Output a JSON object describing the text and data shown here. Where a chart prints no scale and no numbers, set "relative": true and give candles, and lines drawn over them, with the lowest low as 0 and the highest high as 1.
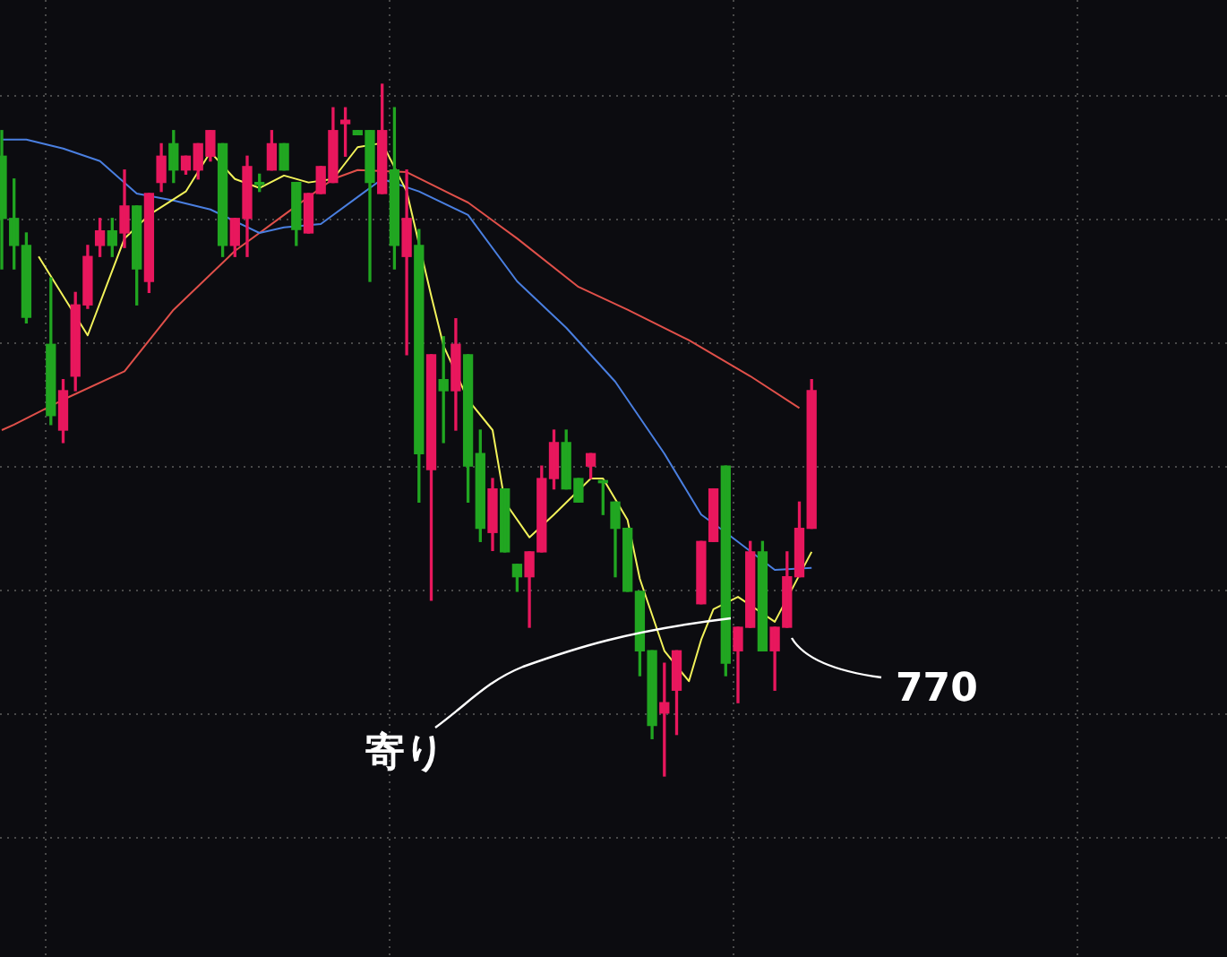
{
  "chart_data": {
    "type": "candlestick",
    "relative": true,
    "grid": true,
    "legend": false,
    "categories": [
      null,
      null,
      null,
      null,
      null,
      null,
      null,
      null,
      null,
      null,
      null,
      null,
      null,
      null,
      null,
      null,
      null,
      null,
      null,
      null,
      null,
      null,
      null,
      null,
      null,
      null,
      null,
      null,
      null,
      null,
      null,
      null,
      null,
      null,
      null,
      null,
      null,
      null,
      null,
      null,
      null,
      null,
      null,
      null,
      null,
      null,
      null,
      null,
      null,
      null,
      null,
      null,
      null,
      null,
      null,
      null,
      null,
      null,
      null,
      null,
      null,
      null,
      null,
      null,
      null,
      null,
      null
    ],
    "ohlc": [
      [
        0.896,
        0.933,
        0.733,
        0.806
      ],
      [
        0.806,
        0.863,
        0.733,
        0.767
      ],
      [
        0.767,
        0.785,
        0.655,
        0.663
      ],
      null,
      [
        0.624,
        0.72,
        0.508,
        0.521
      ],
      [
        0.5,
        0.573,
        0.482,
        0.557
      ],
      [
        0.578,
        0.699,
        0.557,
        0.681
      ],
      [
        0.681,
        0.767,
        0.676,
        0.751
      ],
      [
        0.767,
        0.806,
        0.751,
        0.788
      ],
      [
        0.788,
        0.806,
        0.751,
        0.767
      ],
      [
        0.785,
        0.876,
        0.764,
        0.824
      ],
      [
        0.824,
        0.824,
        0.681,
        0.733
      ],
      [
        0.715,
        0.842,
        0.699,
        0.842
      ],
      [
        0.858,
        0.914,
        0.845,
        0.896
      ],
      [
        0.914,
        0.933,
        0.858,
        0.876
      ],
      [
        0.876,
        0.896,
        0.87,
        0.896
      ],
      [
        0.876,
        0.914,
        0.863,
        0.914
      ],
      [
        0.896,
        0.933,
        0.889,
        0.933
      ],
      [
        0.914,
        0.914,
        0.751,
        0.767
      ],
      [
        0.767,
        0.806,
        0.751,
        0.806
      ],
      [
        0.806,
        0.896,
        0.751,
        0.881
      ],
      [
        0.858,
        0.87,
        0.845,
        0.855
      ],
      [
        0.876,
        0.933,
        0.876,
        0.914
      ],
      [
        0.914,
        0.914,
        0.876,
        0.876
      ],
      [
        0.858,
        0.858,
        0.767,
        0.79
      ],
      [
        0.785,
        0.842,
        0.785,
        0.842
      ],
      [
        0.842,
        0.881,
        0.842,
        0.881
      ],
      [
        0.858,
        0.966,
        0.858,
        0.933
      ],
      [
        0.943,
        0.966,
        0.896,
        0.948
      ],
      [
        0.933,
        0.933,
        0.927,
        0.927
      ],
      [
        0.933,
        0.933,
        0.715,
        0.858
      ],
      [
        0.842,
        1.0,
        0.842,
        0.933
      ],
      [
        0.876,
        0.966,
        0.733,
        0.767
      ],
      [
        0.751,
        0.876,
        0.609,
        0.806
      ],
      [
        0.767,
        0.79,
        0.396,
        0.466
      ],
      [
        0.443,
        0.609,
        0.254,
        0.609
      ],
      [
        0.573,
        0.635,
        0.482,
        0.557
      ],
      [
        0.557,
        0.661,
        0.5,
        0.624
      ],
      [
        0.609,
        0.609,
        0.396,
        0.448
      ],
      [
        0.466,
        0.5,
        0.339,
        0.358
      ],
      [
        0.352,
        0.43,
        0.326,
        0.415
      ],
      [
        0.415,
        0.415,
        0.324,
        0.324
      ],
      [
        0.306,
        0.306,
        0.267,
        0.288
      ],
      [
        0.288,
        0.324,
        0.215,
        0.324
      ],
      [
        0.324,
        0.448,
        0.324,
        0.43
      ],
      [
        0.43,
        0.5,
        0.415,
        0.482
      ],
      [
        0.482,
        0.5,
        0.415,
        0.415
      ],
      [
        0.43,
        0.43,
        0.396,
        0.396
      ],
      [
        0.448,
        0.466,
        0.43,
        0.466
      ],
      [
        0.427,
        0.427,
        0.378,
        0.424
      ],
      [
        0.396,
        0.396,
        0.288,
        0.358
      ],
      [
        0.358,
        0.358,
        0.267,
        0.267
      ],
      [
        0.267,
        0.267,
        0.145,
        0.181
      ],
      [
        0.181,
        0.181,
        0.054,
        0.073
      ],
      [
        0.091,
        0.163,
        0.0,
        0.106
      ],
      [
        0.124,
        0.181,
        0.06,
        0.181
      ],
      null,
      [
        0.249,
        0.339,
        0.249,
        0.339
      ],
      [
        0.339,
        0.415,
        0.339,
        0.415
      ],
      [
        0.448,
        0.448,
        0.145,
        0.163
      ],
      [
        0.181,
        0.215,
        0.106,
        0.215
      ],
      [
        0.215,
        0.339,
        0.215,
        0.324
      ],
      [
        0.324,
        0.339,
        0.181,
        0.181
      ],
      [
        0.181,
        0.215,
        0.124,
        0.215
      ],
      [
        0.215,
        0.324,
        0.215,
        0.288
      ],
      [
        0.288,
        0.396,
        0.288,
        0.358
      ],
      [
        0.358,
        0.573,
        0.358,
        0.557
      ]
    ],
    "colors": [
      "#21a621",
      "#21a621",
      "#21a621",
      null,
      "#21a621",
      "#e8175d",
      "#e8175d",
      "#e8175d",
      "#e8175d",
      "#21a621",
      "#e8175d",
      "#21a621",
      "#e8175d",
      "#e8175d",
      "#21a621",
      "#e8175d",
      "#e8175d",
      "#e8175d",
      "#21a621",
      "#e8175d",
      "#e8175d",
      "#21a621",
      "#e8175d",
      "#21a621",
      "#21a621",
      "#e8175d",
      "#e8175d",
      "#e8175d",
      "#e8175d",
      "#21a621",
      "#21a621",
      "#e8175d",
      "#21a621",
      "#e8175d",
      "#21a621",
      "#e8175d",
      "#21a621",
      "#e8175d",
      "#21a621",
      "#21a621",
      "#e8175d",
      "#21a621",
      "#21a621",
      "#e8175d",
      "#e8175d",
      "#e8175d",
      "#21a621",
      "#21a621",
      "#e8175d",
      "#21a621",
      "#21a621",
      "#21a621",
      "#21a621",
      "#21a621",
      "#e8175d",
      "#e8175d",
      null,
      "#e8175d",
      "#e8175d",
      "#21a621",
      "#e8175d",
      "#e8175d",
      "#21a621",
      "#e8175d",
      "#e8175d",
      "#e8175d",
      "#e8175d"
    ],
    "series": [
      {
        "type": "line",
        "color": "#f2f25a",
        "values": [
          null,
          null,
          null,
          0.751,
          null,
          null,
          null,
          0.637,
          null,
          null,
          0.777,
          null,
          0.811,
          null,
          null,
          0.845,
          null,
          0.902,
          null,
          0.863,
          null,
          0.85,
          null,
          0.868,
          null,
          0.858,
          null,
          0.863,
          null,
          0.909,
          null,
          0.915,
          null,
          0.845,
          null,
          0.694,
          0.622,
          null,
          0.544,
          null,
          0.5,
          0.396,
          null,
          0.345,
          null,
          0.378,
          null,
          null,
          0.43,
          0.43,
          null,
          0.37,
          0.285,
          null,
          0.181,
          null,
          0.137,
          0.197,
          0.241,
          null,
          0.259,
          null,
          null,
          0.223,
          null,
          null,
          0.324
        ]
      },
      {
        "type": "line",
        "color": "#4a7fe0",
        "values": [
          0.92,
          null,
          0.92,
          null,
          null,
          0.907,
          null,
          null,
          0.889,
          null,
          null,
          0.842,
          null,
          null,
          0.832,
          null,
          null,
          0.819,
          null,
          null,
          null,
          0.785,
          null,
          0.793,
          null,
          null,
          0.798,
          null,
          null,
          0.837,
          null,
          0.863,
          null,
          null,
          0.845,
          null,
          null,
          null,
          0.811,
          null,
          null,
          null,
          0.715,
          null,
          null,
          null,
          0.648,
          null,
          null,
          null,
          0.57,
          null,
          null,
          null,
          0.466,
          null,
          null,
          0.378,
          null,
          0.352,
          null,
          null,
          null,
          0.298,
          null,
          null,
          0.301
        ]
      },
      {
        "type": "line",
        "color": "#e0504a",
        "values": [
          0.5,
          0.508,
          null,
          null,
          null,
          0.544,
          null,
          null,
          null,
          null,
          0.585,
          null,
          null,
          null,
          0.674,
          null,
          null,
          null,
          null,
          0.759,
          null,
          null,
          null,
          0.811,
          null,
          null,
          null,
          0.863,
          null,
          0.876,
          null,
          null,
          null,
          0.873,
          null,
          null,
          null,
          null,
          0.829,
          null,
          null,
          null,
          0.777,
          null,
          null,
          null,
          null,
          0.707,
          null,
          null,
          null,
          0.674,
          null,
          null,
          null,
          null,
          0.63,
          null,
          null,
          null,
          null,
          0.578,
          null,
          null,
          null,
          0.532,
          null
        ]
      }
    ],
    "annotations": [
      "寄り",
      "770"
    ]
  }
}
